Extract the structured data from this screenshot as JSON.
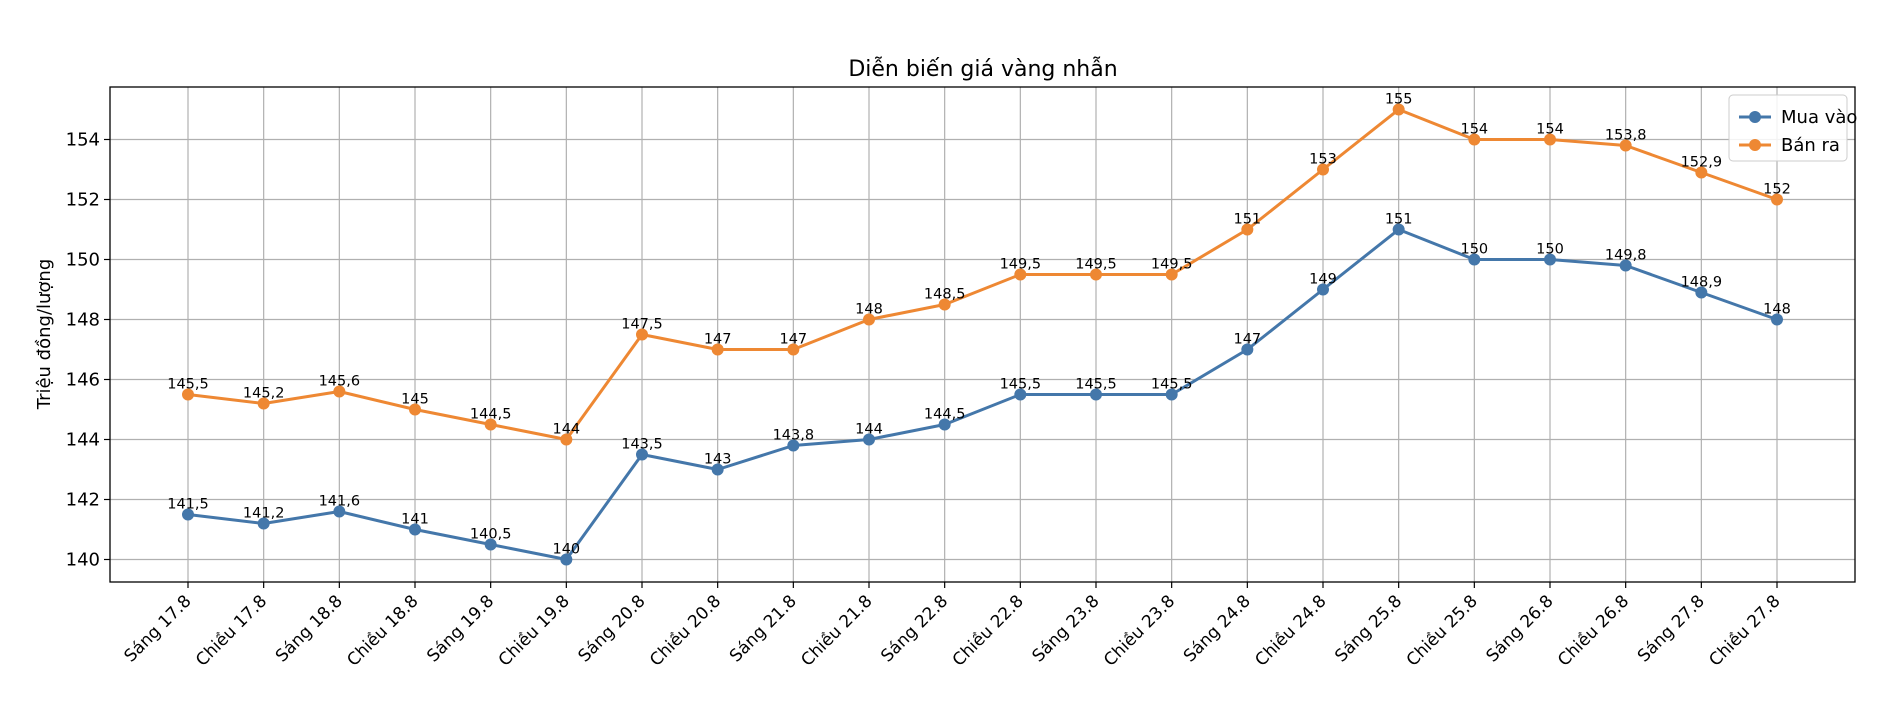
{
  "chart_data": {
    "type": "line",
    "title": "Diễn biến giá vàng nhẫn",
    "xlabel": "",
    "ylabel": "Triệu đồng/lượng",
    "categories": [
      "Sáng 17.8",
      "Chiều 17.8",
      "Sáng 18.8",
      "Chiều 18.8",
      "Sáng 19.8",
      "Chiều 19.8",
      "Sáng 20.8",
      "Chiều 20.8",
      "Sáng 21.8",
      "Chiều 21.8",
      "Sáng 22.8",
      "Chiều 22.8",
      "Sáng 23.8",
      "Chiều 23.8",
      "Sáng 24.8",
      "Chiều 24.8",
      "Sáng 25.8",
      "Chiều 25.8",
      "Sáng 26.8",
      "Chiều 26.8",
      "Sáng 27.8",
      "Chiều 27.8"
    ],
    "series": [
      {
        "name": "Mua vào",
        "color": "#4477aa",
        "values": [
          141.5,
          141.2,
          141.6,
          141,
          140.5,
          140,
          143.5,
          143,
          143.8,
          144,
          144.5,
          145.5,
          145.5,
          145.5,
          147,
          149,
          151,
          150,
          150,
          149.8,
          148.9,
          148
        ],
        "labels": [
          "141,5",
          "141,2",
          "141,6",
          "141",
          "140,5",
          "140",
          "143,5",
          "143",
          "143,8",
          "144",
          "144,5",
          "145,5",
          "145,5",
          "145,5",
          "147",
          "149",
          "151",
          "150",
          "150",
          "149,8",
          "148,9",
          "148"
        ]
      },
      {
        "name": "Bán ra",
        "color": "#ee8833",
        "values": [
          145.5,
          145.2,
          145.6,
          145,
          144.5,
          144,
          147.5,
          147,
          147,
          148,
          148.5,
          149.5,
          149.5,
          149.5,
          151,
          153,
          155,
          154,
          154,
          153.8,
          152.9,
          152
        ],
        "labels": [
          "145,5",
          "145,2",
          "145,6",
          "145",
          "144,5",
          "144",
          "147,5",
          "147",
          "147",
          "148",
          "148,5",
          "149,5",
          "149,5",
          "149,5",
          "151",
          "153",
          "155",
          "154",
          "154",
          "153,8",
          "152,9",
          "152"
        ]
      }
    ],
    "yticks": [
      140,
      142,
      144,
      146,
      148,
      150,
      152,
      154
    ],
    "ylim": [
      139.25,
      155.75
    ],
    "grid": true,
    "legend": "top-right"
  }
}
